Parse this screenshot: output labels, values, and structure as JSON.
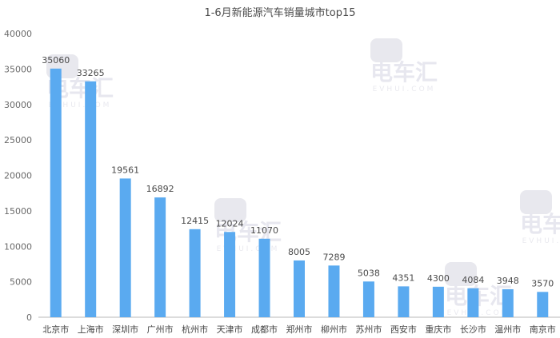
{
  "chart_data": {
    "type": "bar",
    "title": "1-6月新能源汽车销量城市top15",
    "categories": [
      "北京市",
      "上海市",
      "深圳市",
      "广州市",
      "杭州市",
      "天津市",
      "成都市",
      "郑州市",
      "柳州市",
      "苏州市",
      "西安市",
      "重庆市",
      "长沙市",
      "温州市",
      "南京市"
    ],
    "values": [
      35060,
      33265,
      19561,
      16892,
      12415,
      12024,
      11070,
      8005,
      7289,
      5038,
      4351,
      4300,
      4084,
      3948,
      3570
    ],
    "ylim": [
      0,
      40000
    ],
    "yticks": [
      0,
      5000,
      10000,
      15000,
      20000,
      25000,
      30000,
      35000,
      40000
    ],
    "xlabel": "",
    "ylabel": "",
    "bar_color": "#5aaaf0",
    "grid": false,
    "legend": "none",
    "data_labels": true
  },
  "watermark": {
    "brand": "电车汇",
    "sub": "EVHUI.COM",
    "color": "#e8e8ee"
  }
}
